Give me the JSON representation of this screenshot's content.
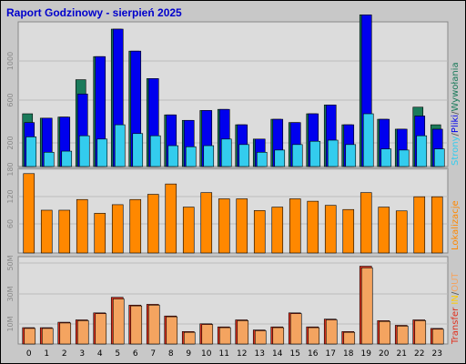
{
  "chart_data": [
    {
      "type": "bar",
      "title": "Raport Godzinowy -  sierpień 2025",
      "categories": [
        "0",
        "1",
        "2",
        "3",
        "4",
        "5",
        "6",
        "7",
        "8",
        "9",
        "10",
        "11",
        "12",
        "13",
        "14",
        "15",
        "16",
        "17",
        "18",
        "19",
        "20",
        "21",
        "22",
        "23"
      ],
      "yticks": [
        "200",
        "600",
        "1000"
      ],
      "ylim": [
        0,
        1250
      ],
      "side_label": [
        "Strony",
        "/",
        "Pliki",
        "/",
        "Wywołania"
      ],
      "series": [
        {
          "name": "Wywołania",
          "color": "#1a7a5a",
          "values": [
            480,
            440,
            450,
            790,
            1000,
            1250,
            1050,
            800,
            470,
            420,
            510,
            520,
            380,
            250,
            430,
            400,
            480,
            560,
            380,
            1380,
            430,
            340,
            540,
            380
          ]
        },
        {
          "name": "Pliki",
          "color": "#0000ee",
          "values": [
            400,
            440,
            450,
            660,
            1000,
            1250,
            1050,
            800,
            470,
            420,
            510,
            520,
            380,
            250,
            430,
            400,
            480,
            560,
            380,
            1380,
            430,
            340,
            460,
            340
          ]
        },
        {
          "name": "Strony",
          "color": "#33ccee",
          "values": [
            270,
            130,
            140,
            280,
            250,
            380,
            300,
            280,
            190,
            180,
            190,
            250,
            200,
            130,
            150,
            200,
            230,
            240,
            200,
            480,
            160,
            150,
            280,
            160
          ]
        }
      ]
    },
    {
      "type": "bar",
      "yticks": [
        "60",
        "120",
        "180"
      ],
      "ylim": [
        0,
        240
      ],
      "side_label": [
        "Lokalizacje"
      ],
      "series": [
        {
          "name": "Lokalizacje",
          "color": "#ff8800",
          "values": [
            230,
            124,
            124,
            155,
            115,
            140,
            155,
            170,
            200,
            133,
            175,
            157,
            157,
            123,
            133,
            157,
            150,
            138,
            126,
            175,
            133,
            122,
            163,
            163
          ]
        }
      ]
    },
    {
      "type": "bar",
      "yticks": [
        "10M",
        "30M",
        "50M"
      ],
      "ylim": [
        0,
        55
      ],
      "side_label": [
        "Transfer",
        " ",
        "IN",
        "/",
        "OUT"
      ],
      "series": [
        {
          "name": "IN",
          "color": "#e0301e",
          "values": [
            10.5,
            10.5,
            14,
            15.5,
            20,
            30,
            25,
            25.5,
            18,
            8,
            13,
            11,
            15.5,
            9,
            11,
            20,
            11,
            16,
            8,
            50,
            15,
            12,
            15.5,
            10
          ]
        },
        {
          "name": "OUT",
          "color": "#f4a460",
          "values": [
            10,
            10,
            13.5,
            15,
            19.5,
            29,
            24.5,
            25,
            17.5,
            7.5,
            12.5,
            10.5,
            15,
            8.5,
            10.5,
            19.5,
            10.5,
            15.5,
            7.5,
            49,
            14.5,
            11.5,
            15,
            9.5
          ]
        }
      ]
    }
  ],
  "colors": {
    "background": "#c8c8c8",
    "plot_bg": "#dcdcdc",
    "title": "#0000cc",
    "side_strony": "#33ccee",
    "side_pliki": "#0000ee",
    "side_wywolania": "#1a7a5a",
    "side_lokalizacje": "#ff8800",
    "side_transfer": "#e0301e",
    "side_in": "#ffcc00",
    "side_out": "#f4a460",
    "slash": "#555555"
  }
}
